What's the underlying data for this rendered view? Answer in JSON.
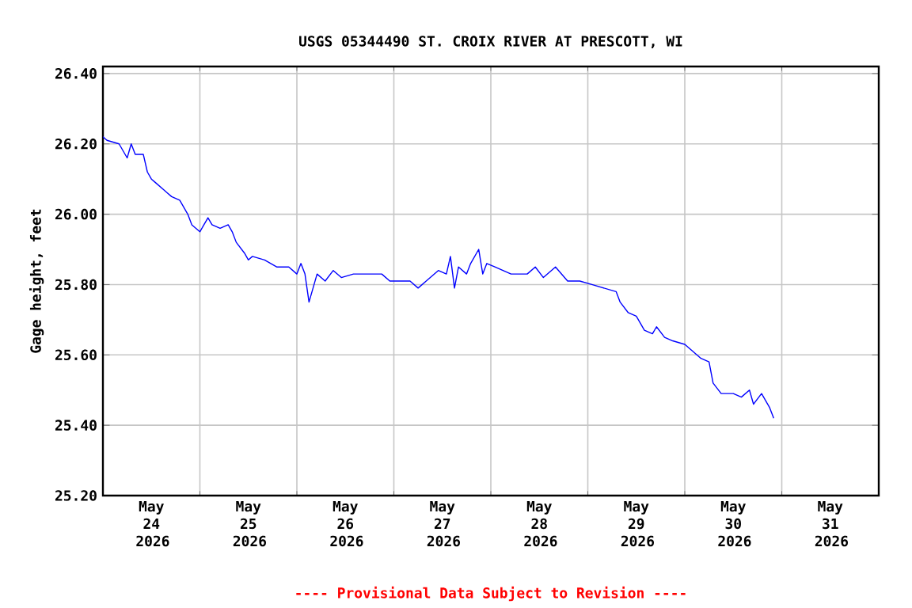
{
  "chart_data": {
    "type": "line",
    "title": "USGS 05344490 ST. CROIX RIVER AT PRESCOTT, WI",
    "ylabel": "Gage height, feet",
    "annotations": [
      "---- Provisional Data Subject to Revision ----"
    ],
    "x": [
      "2026-05-24T00:00",
      "2026-05-24T01:00",
      "2026-05-24T04:00",
      "2026-05-24T06:00",
      "2026-05-24T07:00",
      "2026-05-24T08:00",
      "2026-05-24T10:00",
      "2026-05-24T11:00",
      "2026-05-24T12:00",
      "2026-05-24T13:00",
      "2026-05-24T15:00",
      "2026-05-24T16:00",
      "2026-05-24T17:00",
      "2026-05-24T19:00",
      "2026-05-24T21:00",
      "2026-05-24T22:00",
      "2026-05-25T00:00",
      "2026-05-25T01:00",
      "2026-05-25T02:00",
      "2026-05-25T03:00",
      "2026-05-25T05:00",
      "2026-05-25T07:00",
      "2026-05-25T08:00",
      "2026-05-25T09:00",
      "2026-05-25T11:00",
      "2026-05-25T12:00",
      "2026-05-25T13:00",
      "2026-05-25T16:00",
      "2026-05-25T19:00",
      "2026-05-25T22:00",
      "2026-05-26T00:00",
      "2026-05-26T01:00",
      "2026-05-26T02:00",
      "2026-05-26T03:00",
      "2026-05-26T04:00",
      "2026-05-26T05:00",
      "2026-05-26T07:00",
      "2026-05-26T09:00",
      "2026-05-26T11:00",
      "2026-05-26T14:00",
      "2026-05-26T17:00",
      "2026-05-26T21:00",
      "2026-05-26T23:00",
      "2026-05-27T02:00",
      "2026-05-27T04:00",
      "2026-05-27T06:00",
      "2026-05-27T08:00",
      "2026-05-27T11:00",
      "2026-05-27T13:00",
      "2026-05-27T14:00",
      "2026-05-27T15:00",
      "2026-05-27T16:00",
      "2026-05-27T18:00",
      "2026-05-27T19:00",
      "2026-05-27T21:00",
      "2026-05-27T22:00",
      "2026-05-27T23:00",
      "2026-05-28T01:00",
      "2026-05-28T05:00",
      "2026-05-28T09:00",
      "2026-05-28T11:00",
      "2026-05-28T13:00",
      "2026-05-28T16:00",
      "2026-05-28T19:00",
      "2026-05-28T22:00",
      "2026-05-29T01:00",
      "2026-05-29T04:00",
      "2026-05-29T07:00",
      "2026-05-29T08:00",
      "2026-05-29T10:00",
      "2026-05-29T12:00",
      "2026-05-29T14:00",
      "2026-05-29T16:00",
      "2026-05-29T17:00",
      "2026-05-29T19:00",
      "2026-05-29T21:00",
      "2026-05-30T00:00",
      "2026-05-30T02:00",
      "2026-05-30T04:00",
      "2026-05-30T06:00",
      "2026-05-30T07:00",
      "2026-05-30T09:00",
      "2026-05-30T12:00",
      "2026-05-30T14:00",
      "2026-05-30T16:00",
      "2026-05-30T17:00",
      "2026-05-30T19:00",
      "2026-05-30T21:00",
      "2026-05-30T22:00"
    ],
    "series": [
      {
        "color": "#0000ff",
        "values": [
          26.22,
          26.21,
          26.2,
          26.16,
          26.2,
          26.17,
          26.17,
          26.12,
          26.1,
          26.09,
          26.07,
          26.06,
          26.05,
          26.04,
          26.0,
          25.97,
          25.95,
          25.97,
          25.99,
          25.97,
          25.96,
          25.97,
          25.95,
          25.92,
          25.89,
          25.87,
          25.88,
          25.87,
          25.85,
          25.85,
          25.83,
          25.86,
          25.83,
          25.75,
          25.79,
          25.83,
          25.81,
          25.84,
          25.82,
          25.83,
          25.83,
          25.83,
          25.81,
          25.81,
          25.81,
          25.79,
          25.81,
          25.84,
          25.83,
          25.88,
          25.79,
          25.85,
          25.83,
          25.86,
          25.9,
          25.83,
          25.86,
          25.85,
          25.83,
          25.83,
          25.85,
          25.82,
          25.85,
          25.81,
          25.81,
          25.8,
          25.79,
          25.78,
          25.75,
          25.72,
          25.71,
          25.67,
          25.66,
          25.68,
          25.65,
          25.64,
          25.63,
          25.61,
          25.59,
          25.58,
          25.52,
          25.49,
          25.49,
          25.48,
          25.5,
          25.46,
          25.49,
          25.45,
          25.42
        ]
      }
    ],
    "xlim": [
      "2026-05-24T00:00",
      "2026-06-01T00:00"
    ],
    "xticks": [
      {
        "value": "2026-05-24T12:00",
        "label": "May 24 2026"
      },
      {
        "value": "2026-05-25T12:00",
        "label": "May 25 2026"
      },
      {
        "value": "2026-05-26T12:00",
        "label": "May 26 2026"
      },
      {
        "value": "2026-05-27T12:00",
        "label": "May 27 2026"
      },
      {
        "value": "2026-05-28T12:00",
        "label": "May 28 2026"
      },
      {
        "value": "2026-05-29T12:00",
        "label": "May 29 2026"
      },
      {
        "value": "2026-05-30T12:00",
        "label": "May 30 2026"
      },
      {
        "value": "2026-05-31T12:00",
        "label": "May 31 2026"
      },
      {
        "value": "2026-05-25T00:00",
        "label": null
      },
      {
        "value": "2026-05-26T00:00",
        "label": null
      },
      {
        "value": "2026-05-27T00:00",
        "label": null
      },
      {
        "value": "2026-05-28T00:00",
        "label": null
      },
      {
        "value": "2026-05-29T00:00",
        "label": null
      },
      {
        "value": "2026-05-30T00:00",
        "label": null
      },
      {
        "value": "2026-05-31T00:00",
        "label": null
      }
    ],
    "ylim": [
      25.2,
      26.42
    ],
    "yticks": [
      {
        "value": 25.2,
        "label": "25.20"
      },
      {
        "value": 25.4,
        "label": "25.40"
      },
      {
        "value": 25.6,
        "label": "25.60"
      },
      {
        "value": 25.8,
        "label": "25.80"
      },
      {
        "value": 26.0,
        "label": "26.00"
      },
      {
        "value": 26.2,
        "label": "26.20"
      },
      {
        "value": 26.4,
        "label": "26.40"
      }
    ],
    "grid": true,
    "marker": "none",
    "line_style": "solid"
  }
}
